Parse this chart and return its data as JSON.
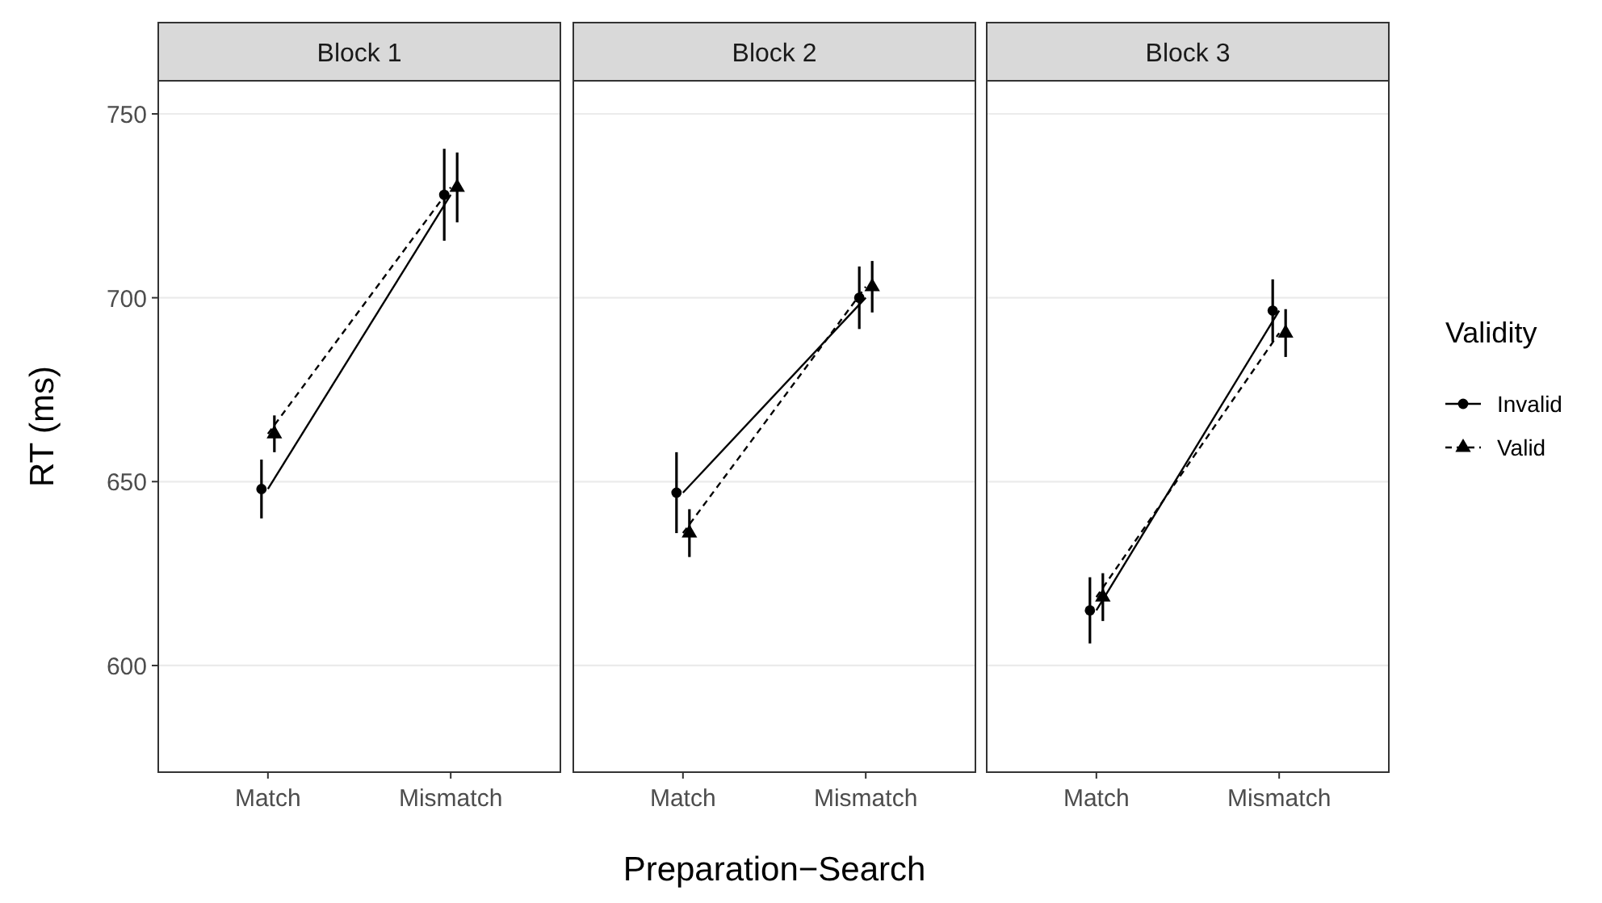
{
  "chart_data": [
    {
      "type": "line",
      "title": "Block 1",
      "ylabel": "RT (ms)",
      "categories": [
        "Match",
        "Mismatch"
      ],
      "ylim": [
        571,
        759
      ],
      "yticks": [
        600,
        650,
        700,
        750
      ],
      "grid": "y",
      "legend": false,
      "series": [
        {
          "color": "#000000",
          "marker": "circle",
          "line_style": "solid",
          "values": [
            648,
            728
          ],
          "errors": [
            8,
            12.5
          ]
        },
        {
          "color": "#000000",
          "marker": "triangle",
          "line_style": "dashed",
          "values": [
            663,
            730
          ],
          "errors": [
            5,
            9.5
          ]
        }
      ]
    },
    {
      "type": "line",
      "title": "Block 2",
      "xlabel": "Preparation−Search",
      "categories": [
        "Match",
        "Mismatch"
      ],
      "ylim": [
        571,
        759
      ],
      "yticks": [
        600,
        650,
        700,
        750
      ],
      "grid": "y",
      "legend": false,
      "tick_labels": "x",
      "series": [
        {
          "color": "#000000",
          "marker": "circle",
          "line_style": "solid",
          "values": [
            647,
            700
          ],
          "errors": [
            11,
            8.5
          ]
        },
        {
          "color": "#000000",
          "marker": "triangle",
          "line_style": "dashed",
          "values": [
            636,
            703
          ],
          "errors": [
            6.5,
            7
          ]
        }
      ]
    },
    {
      "type": "line",
      "title": "Block 3",
      "categories": [
        "Match",
        "Mismatch"
      ],
      "ylim": [
        571,
        759
      ],
      "yticks": [
        600,
        650,
        700,
        750
      ],
      "grid": "y",
      "legend": "right",
      "legend_title": "Validity",
      "tick_labels": "x",
      "series": [
        {
          "name": "Invalid",
          "color": "#000000",
          "marker": "circle",
          "line_style": "solid",
          "values": [
            615,
            696.5
          ],
          "errors": [
            9,
            8.5
          ]
        },
        {
          "name": "Valid",
          "color": "#000000",
          "marker": "triangle",
          "line_style": "dashed",
          "values": [
            618.6,
            690.4
          ],
          "errors": [
            6.5,
            6.5
          ]
        }
      ]
    }
  ]
}
